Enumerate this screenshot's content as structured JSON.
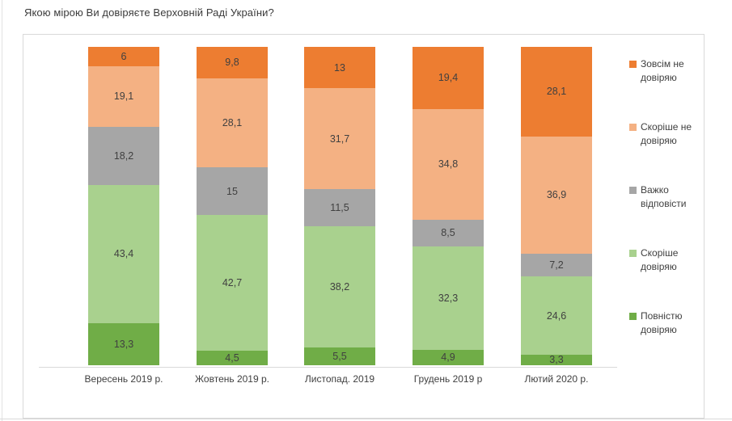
{
  "chart_data": {
    "type": "bar",
    "stacked": true,
    "title": "Якою мірою Ви довіряєте Верховній Раді України?",
    "categories": [
      "Вересень 2019 р.",
      "Жовтень 2019 р.",
      "Листопад. 2019",
      "Грудень 2019 р",
      "Лютий 2020 р."
    ],
    "series": [
      {
        "name": "Зовсім не довіряю",
        "color": "#ED7D31",
        "values": [
          6,
          9.8,
          13,
          19.4,
          28.1
        ],
        "labels": [
          "6",
          "9,8",
          "13",
          "19,4",
          "28,1"
        ]
      },
      {
        "name": "Скоріше не довіряю",
        "color": "#F4B183",
        "values": [
          19.1,
          28.1,
          31.7,
          34.8,
          36.9
        ],
        "labels": [
          "19,1",
          "28,1",
          "31,7",
          "34,8",
          "36,9"
        ]
      },
      {
        "name": "Важко відповісти",
        "color": "#A6A6A6",
        "values": [
          18.2,
          15,
          11.5,
          8.5,
          7.2
        ],
        "labels": [
          "18,2",
          "15",
          "11,5",
          "8,5",
          "7,2"
        ]
      },
      {
        "name": "Скоріше довіряю",
        "color": "#A9D18E",
        "values": [
          43.4,
          42.7,
          38.2,
          32.3,
          24.6
        ],
        "labels": [
          "43,4",
          "42,7",
          "38,2",
          "32,3",
          "24,6"
        ]
      },
      {
        "name": "Повністю довіряю",
        "color": "#70AD47",
        "values": [
          13.3,
          4.5,
          5.5,
          4.9,
          3.3
        ],
        "labels": [
          "13,3",
          "4,5",
          "5,5",
          "4,9",
          "3,3"
        ]
      }
    ],
    "legend_position": "right",
    "ylim": [
      0,
      100
    ],
    "grid": false,
    "value_label_color": "#404040",
    "border_color": "#d9d9d9"
  }
}
